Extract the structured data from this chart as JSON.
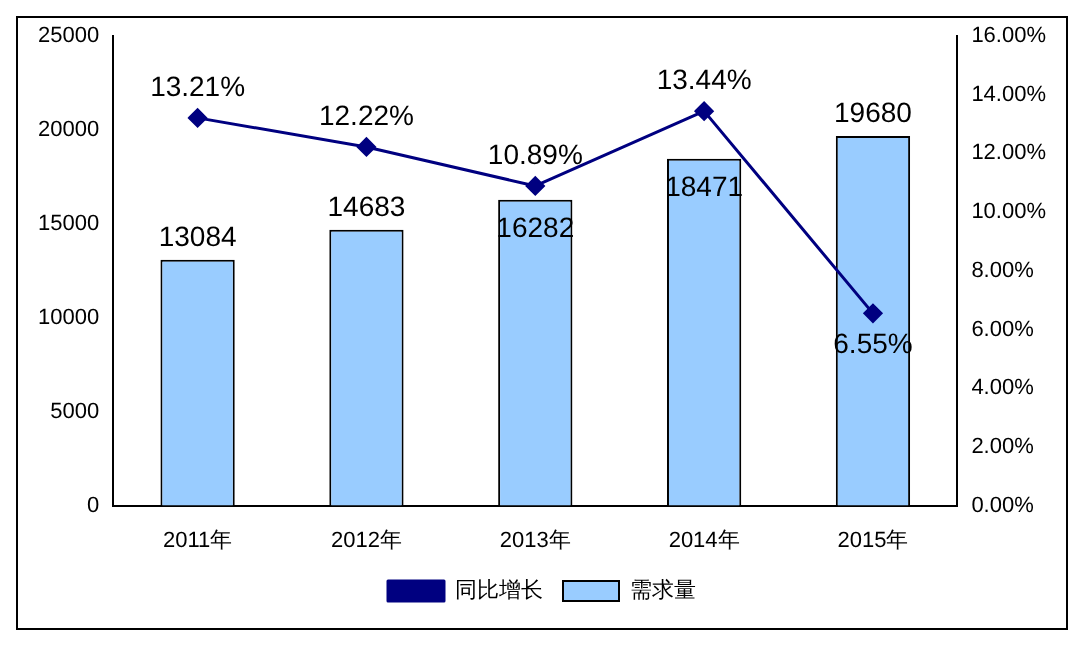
{
  "chart_data": {
    "type": "bar",
    "categories": [
      "2011年",
      "2012年",
      "2013年",
      "2014年",
      "2015年"
    ],
    "series": [
      {
        "name": "需求量",
        "color": "#99ccff",
        "values": [
          13084,
          14683,
          16282,
          18471,
          19680
        ],
        "value_labels": [
          "13084",
          "14683",
          "16282",
          "18471",
          "19680"
        ]
      },
      {
        "name": "同比增长",
        "type": "line",
        "axis": "y2",
        "color": "#000080",
        "values": [
          13.21,
          12.22,
          10.89,
          13.44,
          6.55
        ],
        "value_labels": [
          "13.21%",
          "12.22%",
          "10.89%",
          "13.44%",
          "6.55%"
        ]
      }
    ],
    "ylim": [
      0,
      25000
    ],
    "yticks": [
      0,
      5000,
      10000,
      15000,
      20000,
      25000
    ],
    "y2lim": [
      0,
      16
    ],
    "y2ticks": [
      {
        "value": 0,
        "label": "0.00%"
      },
      {
        "value": 2,
        "label": "2.00%"
      },
      {
        "value": 4,
        "label": "4.00%"
      },
      {
        "value": 6,
        "label": "6.00%"
      },
      {
        "value": 8,
        "label": "8.00%"
      },
      {
        "value": 10,
        "label": "10.00%"
      },
      {
        "value": 12,
        "label": "12.00%"
      },
      {
        "value": 14,
        "label": "14.00%"
      },
      {
        "value": 16,
        "label": "16.00%"
      }
    ],
    "grid": false,
    "legend": "bottom",
    "marker": "diamond",
    "line_style": "solid"
  }
}
